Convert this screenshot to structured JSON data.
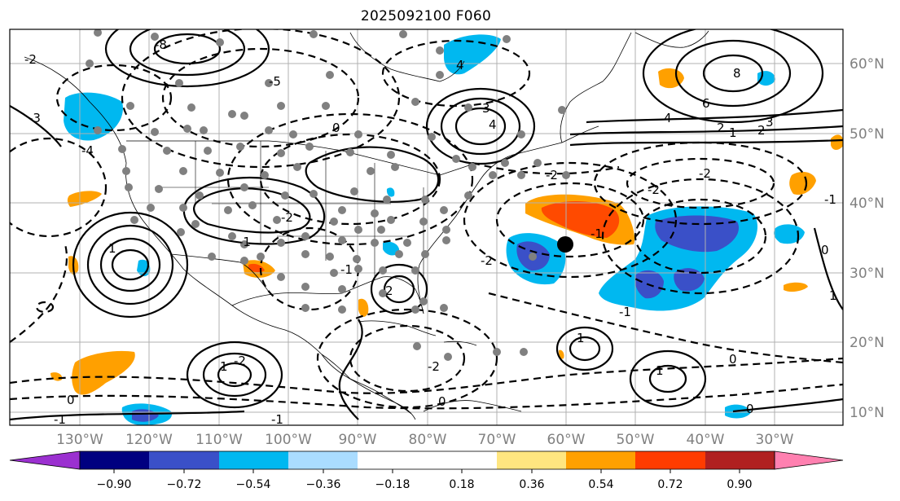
{
  "title": "2025092100 F060",
  "map": {
    "lat_labels": [
      "60°N",
      "50°N",
      "40°N",
      "30°N",
      "20°N",
      "10°N"
    ],
    "lon_labels": [
      "130°W",
      "120°W",
      "110°W",
      "100°W",
      "90°W",
      "80°W",
      "70°W",
      "60°W",
      "50°W",
      "40°W",
      "30°W"
    ],
    "contour_labels": [
      "-8",
      "-2",
      "-4",
      "-3",
      "-5",
      "0",
      "4",
      "3",
      "4",
      "8",
      "6",
      "4",
      "2",
      "1",
      "2",
      "3",
      "-2",
      "-2",
      "-2",
      "-1",
      "-2",
      "-1",
      "-1",
      "-1",
      "-2",
      "1",
      "1",
      "1",
      "1",
      "-2",
      "0",
      "-2",
      "2",
      "-1",
      "0",
      "-1",
      "0",
      "0",
      "1",
      "-1",
      "0"
    ]
  },
  "colorbar": {
    "tick_labels": [
      "−0.90",
      "−0.72",
      "−0.54",
      "−0.36",
      "−0.18",
      "0.18",
      "0.36",
      "0.54",
      "0.72",
      "0.90"
    ],
    "colors": {
      "under": "#9b30d0",
      "bins": [
        "#000080",
        "#3a50c8",
        "#00b8f0",
        "#aadcff",
        "#ffffff",
        "#ffe680",
        "#ffa000",
        "#ff3c00",
        "#b02020"
      ],
      "over": "#ff80b0"
    }
  },
  "shading_colors": {
    "light_positive": "#ffa000",
    "strong_positive": "#ff4a00",
    "light_negative": "#00b8f0",
    "strong_negative": "#3a50c8"
  }
}
